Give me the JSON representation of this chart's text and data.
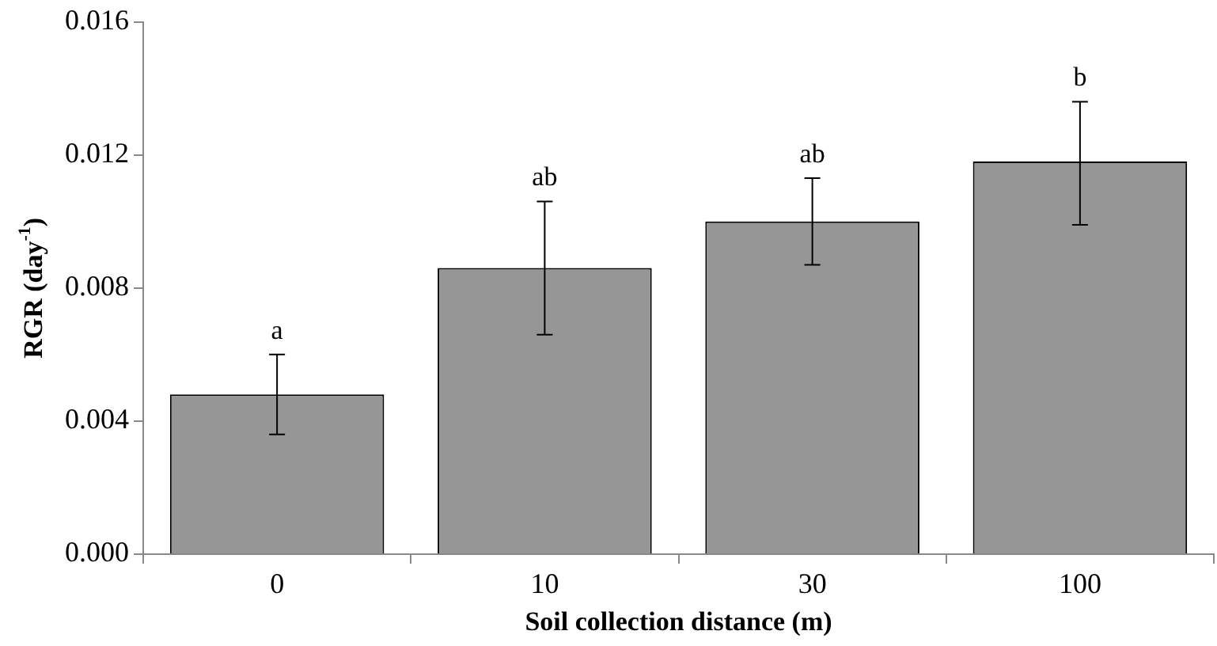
{
  "chart_data": {
    "type": "bar",
    "xlabel": "Soil collection distance (m)",
    "ylabel": "RGR (day$^{-1}$)",
    "categories": [
      "0",
      "10",
      "30",
      "100"
    ],
    "values": [
      0.0048,
      0.0086,
      0.01,
      0.0118
    ],
    "errors": [
      [
        0.0036,
        0.006
      ],
      [
        0.0066,
        0.0106
      ],
      [
        0.0087,
        0.0113
      ],
      [
        0.0099,
        0.0136
      ]
    ],
    "color": "#969696",
    "ylim": [
      0,
      0.016
    ],
    "yticks": [
      {
        "value": 0,
        "label": "0.000"
      },
      {
        "value": 0.004,
        "label": "0.004"
      },
      {
        "value": 0.008,
        "label": "0.008"
      },
      {
        "value": 0.012,
        "label": "0.012"
      },
      {
        "value": 0.016,
        "label": "0.016"
      }
    ],
    "grid": false,
    "legend": false,
    "annotations": [
      {
        "text": "a",
        "x": "0",
        "y": 0.006
      },
      {
        "text": "ab",
        "x": "10",
        "y": 0.0106
      },
      {
        "text": "ab",
        "x": "30",
        "y": 0.0113
      },
      {
        "text": "b",
        "x": "100",
        "y": 0.0136
      }
    ]
  }
}
